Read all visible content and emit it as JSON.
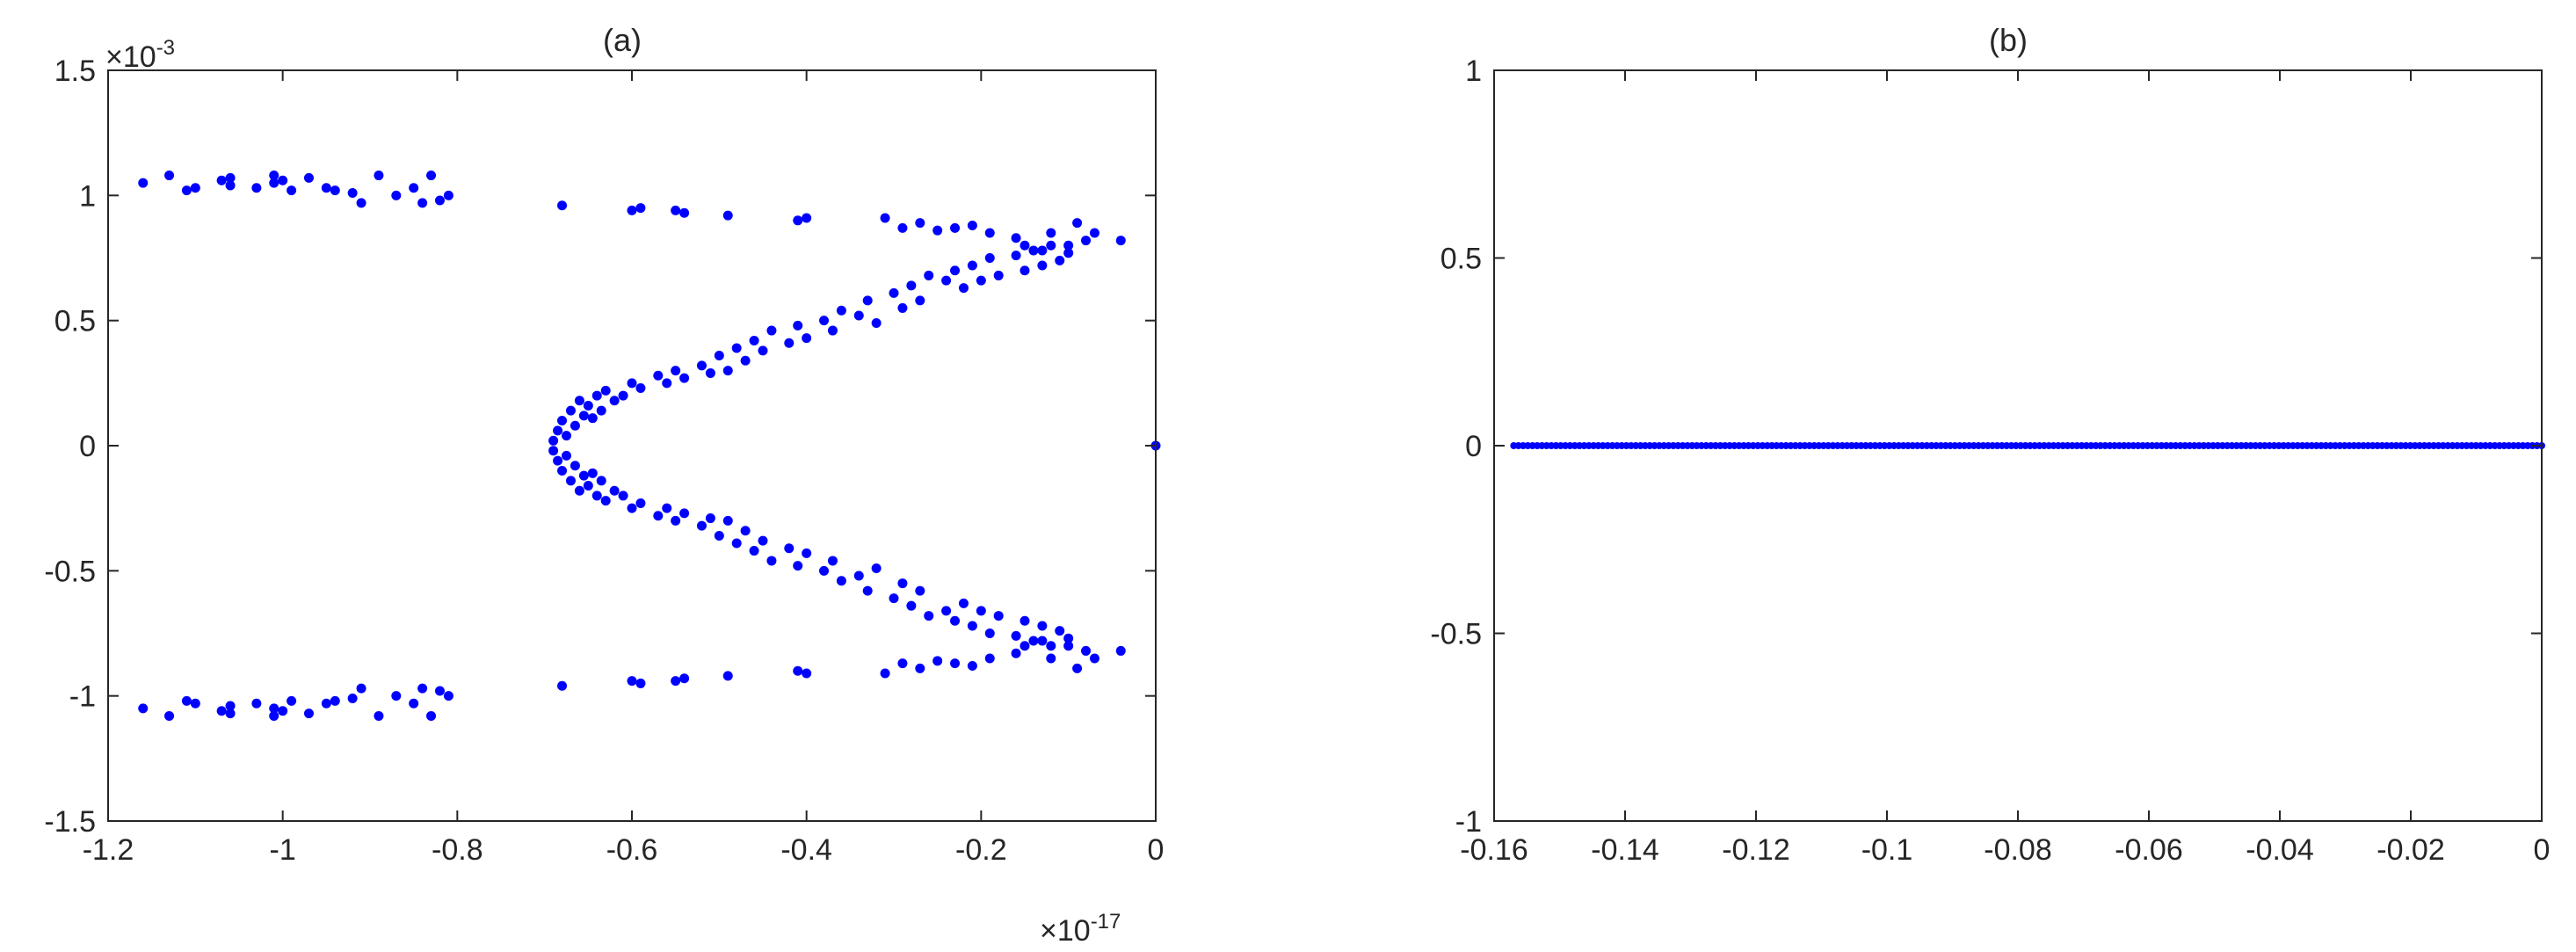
{
  "chart_data": [
    {
      "type": "scatter",
      "title": "(a)",
      "xlim": [
        -1.2,
        0
      ],
      "ylim": [
        -1.5,
        1.5
      ],
      "x_multiplier_label": "×10",
      "x_multiplier_exponent": "-17",
      "y_multiplier_label": "×10",
      "y_multiplier_exponent": "-3",
      "xticks": [
        -1.2,
        -1,
        -0.8,
        -0.6,
        -0.4,
        -0.2,
        0
      ],
      "xtick_labels": [
        "-1.2",
        "-1",
        "-0.8",
        "-0.6",
        "-0.4",
        "-0.2",
        "0"
      ],
      "yticks": [
        -1.5,
        -1,
        -0.5,
        0,
        0.5,
        1,
        1.5
      ],
      "ytick_labels": [
        "-1.5",
        "-1",
        "-0.5",
        "0",
        "0.5",
        "1",
        "1.5"
      ],
      "grid": false,
      "color": "#0000ff",
      "series": [
        {
          "x": [
            -1.16,
            -1.13,
            -1.11,
            -1.1,
            -1.07,
            -1.06,
            -1.06,
            -1.03,
            -1.01,
            -1.01,
            -1.0,
            -0.99,
            -0.97,
            -0.95,
            -0.94,
            -0.92,
            -0.91,
            -0.89,
            -0.87,
            -0.85,
            -0.84,
            -0.83,
            -0.82,
            -0.81,
            -0.68,
            -0.6,
            -0.59,
            -0.55,
            -0.54,
            -0.49,
            -0.41,
            -0.4,
            -0.31,
            -0.29,
            -0.27,
            -0.25,
            -0.23,
            -0.21,
            -0.19,
            -0.16,
            -0.15,
            -0.13,
            -0.12,
            -0.1,
            -0.09,
            -0.07,
            -0.04,
            -0.69,
            -0.685,
            -0.68,
            -0.675,
            -0.67,
            -0.665,
            -0.66,
            -0.655,
            -0.65,
            -0.645,
            -0.64,
            -0.635,
            -0.63,
            -0.62,
            -0.61,
            -0.6,
            -0.59,
            -0.57,
            -0.56,
            -0.55,
            -0.54,
            -0.52,
            -0.51,
            -0.5,
            -0.49,
            -0.48,
            -0.47,
            -0.46,
            -0.45,
            -0.44,
            -0.42,
            -0.41,
            -0.4,
            -0.38,
            -0.37,
            -0.36,
            -0.34,
            -0.33,
            -0.32,
            -0.3,
            -0.29,
            -0.28,
            -0.27,
            -0.26,
            -0.24,
            -0.23,
            -0.22,
            -0.21,
            -0.2,
            -0.19,
            -0.18,
            -0.16,
            -0.15,
            -0.14,
            -0.13,
            -0.12,
            -0.11,
            -0.1,
            -0.08,
            -0.69,
            -0.685,
            -0.68,
            -0.675,
            -0.67,
            -0.665,
            -0.66,
            -0.655,
            -0.65,
            -0.645,
            -0.64,
            -0.635,
            -0.63,
            -0.62,
            -0.61,
            -0.6,
            -0.59,
            -0.57,
            -0.56,
            -0.55,
            -0.54,
            -0.52,
            -0.51,
            -0.5,
            -0.49,
            -0.48,
            -0.47,
            -0.46,
            -0.45,
            -0.44,
            -0.42,
            -0.41,
            -0.4,
            -0.38,
            -0.37,
            -0.36,
            -0.34,
            -0.33,
            -0.32,
            -0.3,
            -0.29,
            -0.28,
            -0.27,
            -0.26,
            -0.24,
            -0.23,
            -0.22,
            -0.21,
            -0.2,
            -0.19,
            -0.18,
            -0.16,
            -0.15,
            -0.14,
            -0.13,
            -0.12,
            -0.11,
            -0.1,
            -0.08,
            -1.16,
            -1.13,
            -1.11,
            -1.1,
            -1.07,
            -1.06,
            -1.06,
            -1.03,
            -1.01,
            -1.01,
            -1.0,
            -0.99,
            -0.97,
            -0.95,
            -0.94,
            -0.92,
            -0.91,
            -0.89,
            -0.87,
            -0.85,
            -0.84,
            -0.83,
            -0.82,
            -0.81,
            -0.68,
            -0.6,
            -0.59,
            -0.55,
            -0.54,
            -0.49,
            -0.41,
            -0.4,
            -0.31,
            -0.29,
            -0.27,
            -0.25,
            -0.23,
            -0.21,
            -0.19,
            -0.16,
            -0.15,
            -0.13,
            -0.12,
            -0.1,
            -0.09,
            -0.07,
            -0.04,
            0.0
          ],
          "y": [
            1.05,
            1.08,
            1.02,
            1.03,
            1.06,
            1.04,
            1.07,
            1.03,
            1.05,
            1.08,
            1.06,
            1.02,
            1.07,
            1.03,
            1.02,
            1.01,
            0.97,
            1.08,
            1.0,
            1.03,
            0.97,
            1.08,
            0.98,
            1.0,
            0.96,
            0.94,
            0.95,
            0.94,
            0.93,
            0.92,
            0.9,
            0.91,
            0.91,
            0.87,
            0.89,
            0.86,
            0.87,
            0.88,
            0.85,
            0.83,
            0.8,
            0.78,
            0.85,
            0.8,
            0.89,
            0.85,
            0.82,
            0.02,
            0.06,
            0.1,
            0.04,
            0.14,
            0.08,
            0.18,
            0.12,
            0.16,
            0.11,
            0.2,
            0.14,
            0.22,
            0.18,
            0.2,
            0.25,
            0.23,
            0.28,
            0.25,
            0.3,
            0.27,
            0.32,
            0.29,
            0.36,
            0.3,
            0.39,
            0.34,
            0.42,
            0.38,
            0.46,
            0.41,
            0.48,
            0.43,
            0.5,
            0.46,
            0.54,
            0.52,
            0.58,
            0.49,
            0.61,
            0.55,
            0.64,
            0.58,
            0.68,
            0.66,
            0.7,
            0.63,
            0.72,
            0.66,
            0.75,
            0.68,
            0.76,
            0.7,
            0.78,
            0.72,
            0.8,
            0.74,
            0.77,
            0.82,
            -0.02,
            -0.06,
            -0.1,
            -0.04,
            -0.14,
            -0.08,
            -0.18,
            -0.12,
            -0.16,
            -0.11,
            -0.2,
            -0.14,
            -0.22,
            -0.18,
            -0.2,
            -0.25,
            -0.23,
            -0.28,
            -0.25,
            -0.3,
            -0.27,
            -0.32,
            -0.29,
            -0.36,
            -0.3,
            -0.39,
            -0.34,
            -0.42,
            -0.38,
            -0.46,
            -0.41,
            -0.48,
            -0.43,
            -0.5,
            -0.46,
            -0.54,
            -0.52,
            -0.58,
            -0.49,
            -0.61,
            -0.55,
            -0.64,
            -0.58,
            -0.68,
            -0.66,
            -0.7,
            -0.63,
            -0.72,
            -0.66,
            -0.75,
            -0.68,
            -0.76,
            -0.7,
            -0.78,
            -0.72,
            -0.8,
            -0.74,
            -0.77,
            -0.82,
            -1.05,
            -1.08,
            -1.02,
            -1.03,
            -1.06,
            -1.04,
            -1.07,
            -1.03,
            -1.05,
            -1.08,
            -1.06,
            -1.02,
            -1.07,
            -1.03,
            -1.02,
            -1.01,
            -0.97,
            -1.08,
            -1.0,
            -1.03,
            -0.97,
            -1.08,
            -0.98,
            -1.0,
            -0.96,
            -0.94,
            -0.95,
            -0.94,
            -0.93,
            -0.92,
            -0.9,
            -0.91,
            -0.91,
            -0.87,
            -0.89,
            -0.86,
            -0.87,
            -0.88,
            -0.85,
            -0.83,
            -0.8,
            -0.78,
            -0.85,
            -0.8,
            -0.89,
            -0.85,
            -0.82,
            0.0
          ]
        }
      ]
    },
    {
      "type": "scatter",
      "title": "(b)",
      "xlim": [
        -0.16,
        0
      ],
      "ylim": [
        -1,
        1
      ],
      "xticks": [
        -0.16,
        -0.14,
        -0.12,
        -0.1,
        -0.08,
        -0.06,
        -0.04,
        -0.02,
        0
      ],
      "xtick_labels": [
        "-0.16",
        "-0.14",
        "-0.12",
        "-0.1",
        "-0.08",
        "-0.06",
        "-0.04",
        "-0.02",
        "0"
      ],
      "yticks": [
        -1,
        -0.5,
        0,
        0.5,
        1
      ],
      "ytick_labels": [
        "-1",
        "-0.5",
        "0",
        "0.5",
        "1"
      ],
      "grid": false,
      "color": "#0000ff",
      "series": [
        {
          "x_range": [
            -0.157,
            0
          ],
          "point_count": 220,
          "y_value": 0
        }
      ]
    }
  ]
}
